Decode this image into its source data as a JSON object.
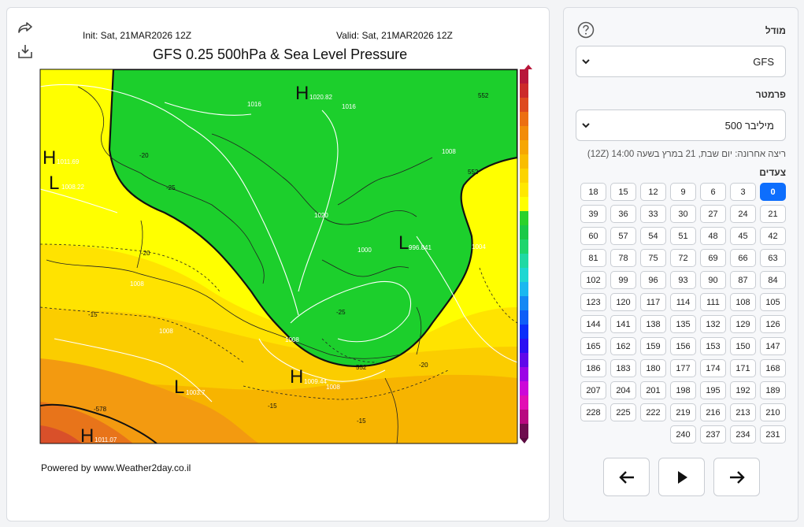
{
  "map": {
    "init_text": "Init: Sat, 21MAR2026 12Z",
    "valid_text": "Valid: Sat, 21MAR2026 12Z",
    "title": "GFS 0.25 500hPa & Sea Level Pressure",
    "powered_by": "Powered by www.Weather2day.co.il",
    "pressure_labels": [
      {
        "letter": "H",
        "value": "1020.82"
      },
      {
        "letter": "H",
        "value": "1011.69"
      },
      {
        "letter": "L",
        "value": "1008.22"
      },
      {
        "letter": "L",
        "value": "996.841"
      },
      {
        "letter": "H",
        "value": "1009.44"
      },
      {
        "letter": "L",
        "value": "1003.7"
      },
      {
        "letter": "H",
        "value": "1011.07"
      }
    ],
    "contour_labels": [
      "552",
      "552",
      "552",
      "-20",
      "-20",
      "-25",
      "-25",
      "-20",
      "-15",
      "-15",
      "-15",
      "-578",
      "1016",
      "1016",
      "1008",
      "1008",
      "1008",
      "1004",
      "1008",
      "1000",
      "1020",
      "1008"
    ],
    "colors": {
      "green": "#18d02a",
      "yellow": "#ffff00",
      "orange": "#f7b200",
      "deep_orange": "#ef7a10",
      "red": "#dc4a1e"
    }
  },
  "toolbar": {
    "share_icon": "share-icon",
    "download_icon": "download-icon"
  },
  "panel": {
    "model_label": "מודל",
    "model_value": "GFS",
    "param_label": "פרמטר",
    "param_value": "500 מיליבר",
    "last_run": "ריצה אחרונה: יום שבת, 21 במרץ בשעה 14:00 (12Z)",
    "steps_label": "צעדים",
    "steps": [
      0,
      3,
      6,
      9,
      12,
      15,
      18,
      21,
      24,
      27,
      30,
      33,
      36,
      39,
      42,
      45,
      48,
      51,
      54,
      57,
      60,
      63,
      66,
      69,
      72,
      75,
      78,
      81,
      84,
      87,
      90,
      93,
      96,
      99,
      102,
      105,
      108,
      111,
      114,
      117,
      120,
      123,
      126,
      129,
      132,
      135,
      138,
      141,
      144,
      147,
      150,
      153,
      156,
      159,
      162,
      165,
      168,
      171,
      174,
      177,
      180,
      183,
      186,
      189,
      192,
      195,
      198,
      201,
      204,
      207,
      210,
      213,
      216,
      219,
      222,
      225,
      228,
      231,
      234,
      237,
      240
    ],
    "active_step": 0,
    "prev_icon": "arrow-left-icon",
    "play_icon": "play-icon",
    "next_icon": "arrow-right-icon"
  }
}
